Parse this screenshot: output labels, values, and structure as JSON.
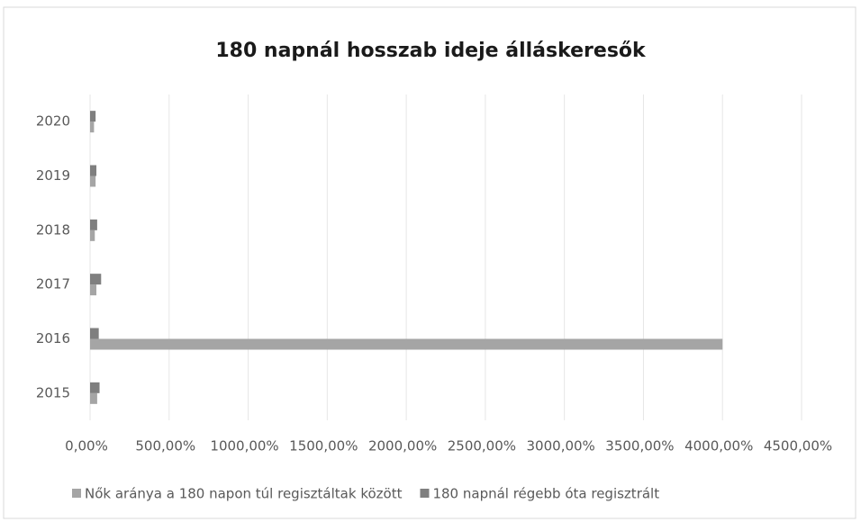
{
  "chart_data": {
    "type": "hbar",
    "title": "180 napnál hosszab ideje álláskeresők",
    "categories": [
      "2015",
      "2016",
      "2017",
      "2018",
      "2019",
      "2020"
    ],
    "series": [
      {
        "name": "Nők aránya a 180 napon túl regisztáltak között",
        "color": "#a5a5a5",
        "values": [
          45,
          4000,
          40,
          30,
          35,
          25
        ]
      },
      {
        "name": "180 napnál régebb óta regisztrált",
        "color": "#7f7f7f",
        "values": [
          60,
          55,
          70,
          45,
          40,
          35
        ]
      }
    ],
    "xlim": [
      0,
      4500
    ],
    "xticks": [
      {
        "value": 0,
        "label": "0,00%"
      },
      {
        "value": 500,
        "label": "500,00%"
      },
      {
        "value": 1000,
        "label": "1000,00%"
      },
      {
        "value": 1500,
        "label": "1500,00%"
      },
      {
        "value": 2000,
        "label": "2000,00%"
      },
      {
        "value": 2500,
        "label": "2500,00%"
      },
      {
        "value": 3000,
        "label": "3000,00%"
      },
      {
        "value": 3500,
        "label": "3500,00%"
      },
      {
        "value": 4000,
        "label": "4000,00%"
      },
      {
        "value": 4500,
        "label": "4500,00%"
      }
    ],
    "grid": true,
    "legend": "bottom"
  }
}
